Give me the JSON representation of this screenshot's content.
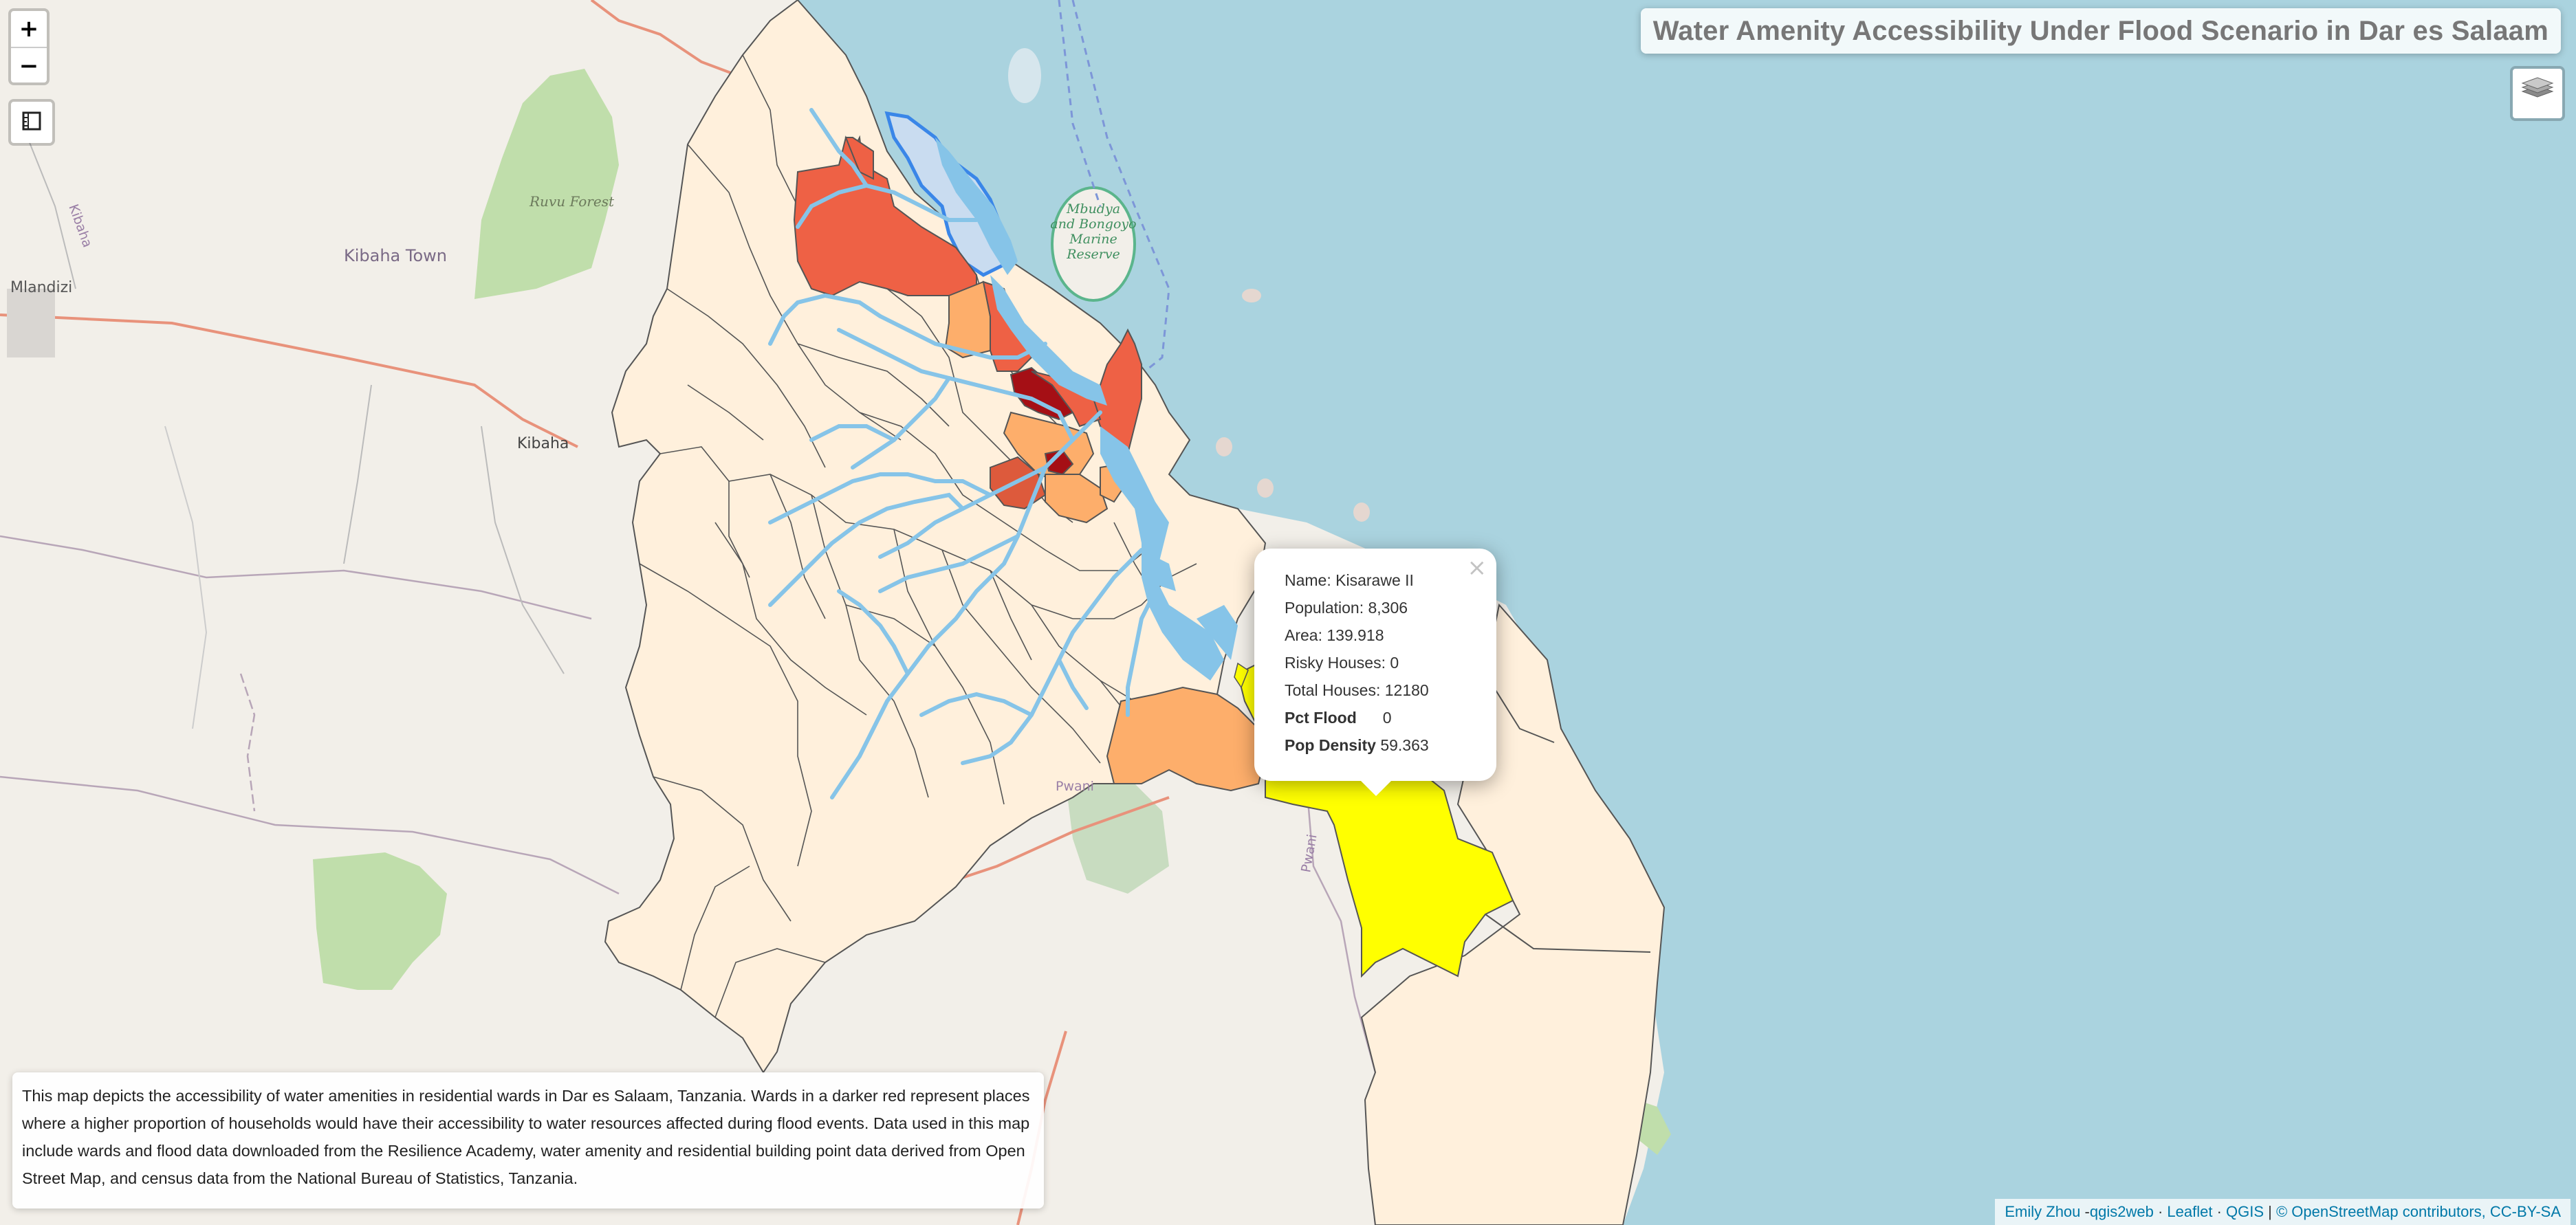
{
  "map": {
    "title": "Water Amenity Accessibility Under Flood Scenario in Dar es Salaam",
    "colors": {
      "sea": "#aad3df",
      "land": "#f2efe9",
      "ward_low": "#fff0dc",
      "ward_mid": "#fdae6b",
      "ward_high": "#ee6145",
      "ward_top": "#a50f15",
      "selected_ward": "#ffff00",
      "flood_water": "#86c4e8",
      "forest": "#c0deab",
      "highlight_outline": "#3a86e8"
    },
    "place_labels": [
      "Ruvu Forest",
      "Kibaha Town",
      "Mlandizi",
      "Kibaha",
      "Mbudya and Bongoyo Marine Reserve",
      "Kibaha",
      "Pwani",
      "Pwani",
      "Pwani"
    ],
    "controls": {
      "zoom_in": "+",
      "zoom_out": "−",
      "measure_icon": "ruler-icon",
      "layers_icon": "layers-icon"
    }
  },
  "popup": {
    "close": "×",
    "rows": [
      {
        "label": "Name:",
        "value": "Kisarawe II"
      },
      {
        "label": "Population:",
        "value": "8,306"
      },
      {
        "label": "Area:",
        "value": "139.918"
      },
      {
        "label": "Risky Houses:",
        "value": "0"
      },
      {
        "label": "Total Houses:",
        "value": "12180"
      },
      {
        "label": "Pct Flood",
        "value": "0"
      },
      {
        "label": "Pop Density",
        "value": "59.363"
      }
    ]
  },
  "description": "This map depicts the accessibility of water amenities in residential wards in Dar es Salaam, Tanzania. Wards in a darker red represent places where a higher proportion of households would have their accessibility to water resources affected during flood events. Data used in this map include wards and flood data downloaded from the Resilience Academy, water amenity and residential building point data derived from Open Street Map, and census data from the National Bureau of Statistics, Tanzania.",
  "attribution": {
    "author": "Emily Zhou",
    "qgis2web": "qgis2web",
    "leaflet": "Leaflet",
    "qgis": "QGIS",
    "osm": "© OpenStreetMap contributors, CC-BY-SA"
  }
}
